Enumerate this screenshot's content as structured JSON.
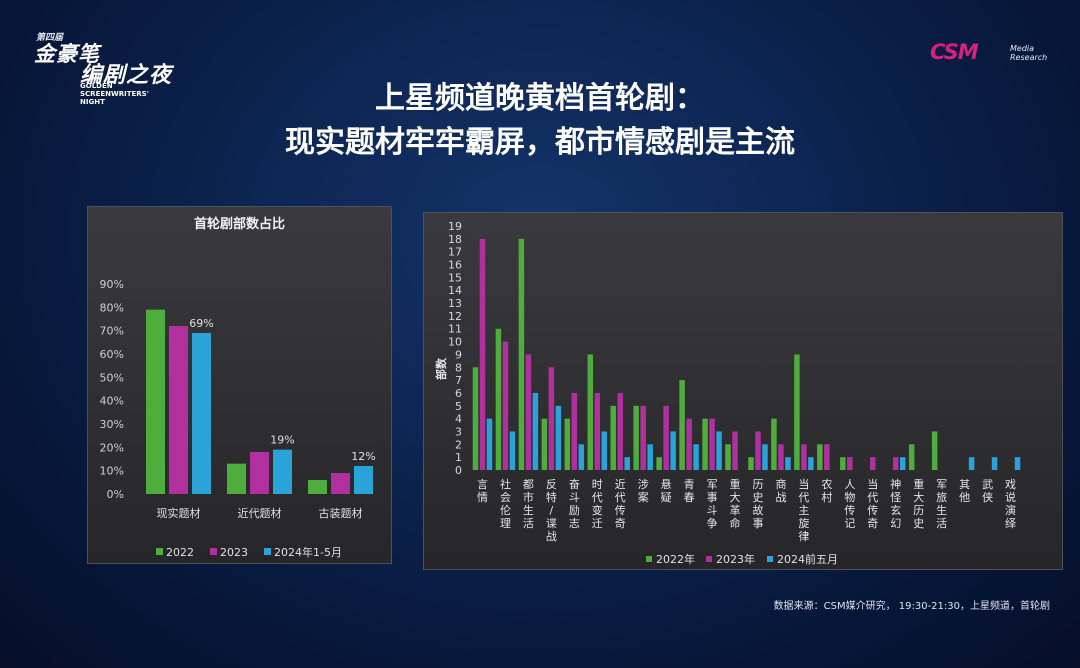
{
  "header": {
    "logo_left": {
      "line1": "第四届",
      "line2": "金豪笔",
      "line3": "编剧之夜",
      "line4": "GOLDEN SCREENWRITERS' NIGHT"
    },
    "logo_right": {
      "brand": "CSM",
      "sub1": "Media",
      "sub2": "Research"
    },
    "title_line1": "上星频道晚黄档首轮剧：",
    "title_line2": "现实题材牢牢霸屏，都市情感剧是主流"
  },
  "footer": {
    "source": "数据来源：CSM媒介研究， 19:30-21:30，上星频道，首轮剧"
  },
  "colors": {
    "green": "#4ead3c",
    "magenta": "#b0309d",
    "blue": "#2aa3d8"
  },
  "chart_data": [
    {
      "type": "bar",
      "title": "首轮剧部数占比",
      "categories": [
        "现实题材",
        "近代题材",
        "古装题材"
      ],
      "series": [
        {
          "name": "2022",
          "values": [
            79,
            13,
            6
          ]
        },
        {
          "name": "2023",
          "values": [
            72,
            18,
            9
          ]
        },
        {
          "name": "2024年1-5月",
          "values": [
            69,
            19,
            12
          ]
        }
      ],
      "data_labels": {
        "2024年1-5月": [
          "69%",
          "19%",
          "12%"
        ]
      },
      "ylim": [
        0,
        90
      ],
      "yticks": [
        "0%",
        "10%",
        "20%",
        "30%",
        "40%",
        "50%",
        "60%",
        "70%",
        "80%",
        "90%"
      ],
      "legend_position": "bottom",
      "grid": false
    },
    {
      "type": "bar",
      "title": "",
      "ylabel": "部数",
      "categories": [
        "言情",
        "社会伦理",
        "都市生活",
        "反特/谍战",
        "奋斗励志",
        "时代变迁",
        "近代传奇",
        "涉案",
        "悬疑",
        "青春",
        "军事斗争",
        "重大革命",
        "历史故事",
        "商战",
        "当代主旋律",
        "农村",
        "人物传记",
        "当代传奇",
        "神怪玄幻",
        "重大历史",
        "军旅生活",
        "其他",
        "武侠",
        "戏说演绎"
      ],
      "series": [
        {
          "name": "2022年",
          "values": [
            8,
            11,
            18,
            4,
            4,
            9,
            5,
            5,
            1,
            7,
            4,
            2,
            1,
            4,
            9,
            2,
            1,
            0,
            0,
            2,
            3,
            0,
            0,
            0
          ]
        },
        {
          "name": "2023年",
          "values": [
            18,
            10,
            9,
            8,
            6,
            6,
            6,
            5,
            5,
            4,
            4,
            3,
            3,
            2,
            2,
            2,
            1,
            1,
            1,
            0,
            0,
            0,
            0,
            0
          ]
        },
        {
          "name": "2024前五月",
          "values": [
            4,
            3,
            6,
            5,
            2,
            3,
            1,
            2,
            3,
            2,
            3,
            0,
            2,
            1,
            1,
            0,
            0,
            0,
            1,
            0,
            0,
            1,
            1,
            1
          ]
        }
      ],
      "ylim": [
        0,
        19
      ],
      "legend_position": "bottom",
      "grid": false
    }
  ]
}
